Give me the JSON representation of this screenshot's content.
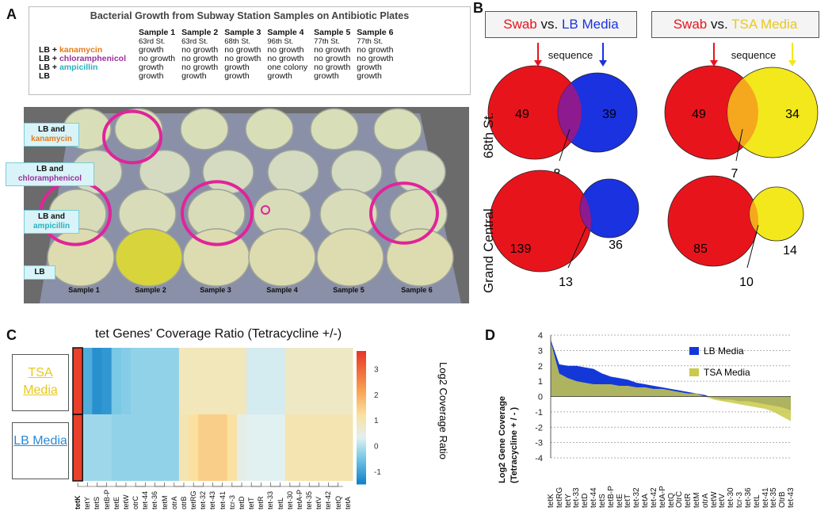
{
  "panels": {
    "a": "A",
    "b": "B",
    "c": "C",
    "d": "D"
  },
  "panelA": {
    "title": "Bacterial Growth from Subway Station Samples on Antibiotic Plates",
    "samples": [
      "Sample 1",
      "Sample 2",
      "Sample 3",
      "Sample 4",
      "Sample 5",
      "Sample 6"
    ],
    "stations": [
      "63rd St.",
      "63rd St.",
      "68th St.",
      "96th St.",
      "77th St.",
      "77th St."
    ],
    "rows": [
      {
        "prefix": "LB + ",
        "antibiotic": "kanamycin",
        "cells": [
          "growth",
          "no growth",
          "no growth",
          "no growth",
          "no growth",
          "no growth"
        ]
      },
      {
        "prefix": "LB + ",
        "antibiotic": "chloramphenicol",
        "cells": [
          "no growth",
          "no growth",
          "no growth",
          "no growth",
          "no growth",
          "no growth"
        ]
      },
      {
        "prefix": "LB + ",
        "antibiotic": "ampicillin",
        "cells": [
          "growth",
          "no growth",
          "growth",
          "one colony",
          "no growth",
          "growth"
        ]
      },
      {
        "prefix": "LB",
        "antibiotic": "",
        "cells": [
          "growth",
          "growth",
          "growth",
          "growth",
          "growth",
          "growth"
        ]
      }
    ],
    "plate_labels": [
      {
        "l1": "LB and",
        "l2": "kanamycin"
      },
      {
        "l1": "LB and",
        "l2": "chloramphenicol"
      },
      {
        "l1": "LB and",
        "l2": "ampicillin"
      },
      {
        "l1": "LB",
        "l2": ""
      }
    ],
    "photo_sample_labels": [
      "Sample 1",
      "Sample 2",
      "Sample 3",
      "Sample 4",
      "Sample 5",
      "Sample 6"
    ]
  },
  "panelB": {
    "left_title": {
      "swab": "Swab",
      "vs": " vs. ",
      "media": "LB Media"
    },
    "right_title": {
      "swab": "Swab",
      "vs": " vs. ",
      "media": "TSA Media"
    },
    "sequence_label": "sequence",
    "rows": [
      {
        "label": "68th St."
      },
      {
        "label": "Grand Central"
      }
    ],
    "venns": [
      {
        "left": 49,
        "right": 39,
        "overlap": 8
      },
      {
        "left": 49,
        "right": 34,
        "overlap": 7
      },
      {
        "left": 139,
        "right": 36,
        "overlap": 13
      },
      {
        "left": 85,
        "right": 14,
        "overlap": 10
      }
    ]
  },
  "chart_data": [
    {
      "type": "heatmap",
      "title": "tet Genes' Coverage Ratio (Tetracycline +/-)",
      "colorbar_label": "Log2 Coverage Ratio",
      "colorbar_ticks": [
        3,
        2,
        1,
        0,
        -1
      ],
      "rows": [
        "TSA Media",
        "LB Media"
      ],
      "columns": [
        "tetK",
        "tetY",
        "tetS",
        "tetB-P",
        "tetE",
        "tetW",
        "otrC",
        "tet-44",
        "tet-36",
        "tetM",
        "otrA",
        "otrB",
        "tetRG",
        "tet-32",
        "tet-43",
        "tet-41",
        "tcr-3",
        "tetD",
        "tetT",
        "tetR",
        "tet-33",
        "tetL",
        "tet-30",
        "tetA-P",
        "tet-35",
        "tetV",
        "tet-42",
        "tetQ",
        "tetA"
      ],
      "values": [
        [
          3.6,
          -0.9,
          -1.3,
          -1.2,
          -0.5,
          -0.4,
          -0.3,
          -0.3,
          -0.3,
          -0.3,
          -0.3,
          0.9,
          0.9,
          0.9,
          0.9,
          0.9,
          0.9,
          0.9,
          0.2,
          0.2,
          0.2,
          0.2,
          0.8,
          0.8,
          0.8,
          0.8,
          0.8,
          0.8,
          0.8
        ],
        [
          3.6,
          -0.2,
          -0.2,
          -0.2,
          -0.3,
          -0.3,
          -0.3,
          -0.3,
          -0.3,
          -0.3,
          -0.3,
          1.0,
          1.2,
          1.5,
          1.5,
          1.5,
          1.2,
          0.4,
          0.3,
          0.3,
          0.3,
          0.3,
          1.0,
          1.0,
          1.0,
          1.0,
          1.0,
          1.0,
          1.0
        ]
      ],
      "zlim": [
        -1.5,
        3.7
      ]
    },
    {
      "type": "area",
      "ylabel_l1": "Log2 Gene Coverage",
      "ylabel_l2": "(Tetracycline + / - )",
      "ylim": [
        -4,
        4
      ],
      "yticks": [
        4,
        3,
        2,
        1,
        0,
        -1,
        -2,
        -3,
        -4
      ],
      "categories": [
        "tetK",
        "tetRG",
        "tetY",
        "tet-33",
        "tetD",
        "tet-44",
        "tetS",
        "tetB-P",
        "tetE",
        "tetT",
        "tet-32",
        "tetA",
        "tet-42",
        "tetA-P",
        "tetQ",
        "OtrC",
        "tetR",
        "tetM",
        "otrA",
        "tetW",
        "tetV",
        "tet-30",
        "tcr-3",
        "tet-36",
        "tetL",
        "tet-41",
        "tet-35",
        "OtrB",
        "tet-43"
      ],
      "series": [
        {
          "name": "LB Media",
          "color": "#1438d8",
          "values": [
            3.7,
            2.1,
            2.0,
            2.0,
            1.9,
            1.8,
            1.5,
            1.3,
            1.2,
            1.1,
            0.9,
            0.8,
            0.7,
            0.6,
            0.5,
            0.4,
            0.3,
            0.2,
            0.1,
            -0.1,
            -0.2,
            -0.2,
            -0.3,
            -0.3,
            -0.4,
            -0.5,
            -0.6,
            -0.7,
            -0.9
          ]
        },
        {
          "name": "TSA Media",
          "color": "#c9c94a",
          "values": [
            3.6,
            1.5,
            1.2,
            1.0,
            0.9,
            0.8,
            0.8,
            0.8,
            0.7,
            0.7,
            0.6,
            0.6,
            0.5,
            0.5,
            0.4,
            0.3,
            0.2,
            0.2,
            0.0,
            -0.2,
            -0.3,
            -0.4,
            -0.5,
            -0.6,
            -0.7,
            -0.8,
            -1.0,
            -1.3,
            -1.6
          ]
        }
      ]
    }
  ],
  "colors": {
    "swab": "#e8141c",
    "lb": "#1a32e0",
    "tsa": "#f2e81c",
    "overlap_lb": "#8d1a8e",
    "overlap_tsa": "#f5a81e",
    "magenta": "#e0249a"
  }
}
